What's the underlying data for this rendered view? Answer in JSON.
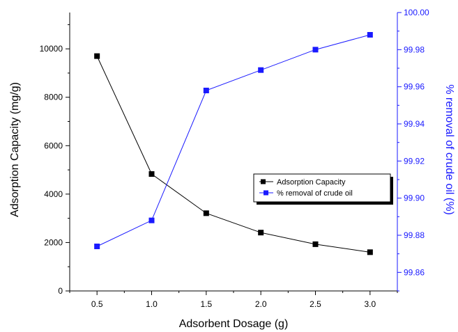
{
  "chart_data": {
    "type": "line",
    "title": "",
    "xlabel": "Adsorbent Dosage (g)",
    "ylabel_left": "Adsorption Capacity (mg/g)",
    "ylabel_right": "% removal of crude oil (%)",
    "x": [
      0.5,
      1.0,
      1.5,
      2.0,
      2.5,
      3.0
    ],
    "x_ticks": [
      "0.5",
      "1.0",
      "1.5",
      "2.0",
      "2.5",
      "3.0"
    ],
    "xlim": [
      0.25,
      3.25
    ],
    "ylim_left": [
      0,
      11500
    ],
    "y_left_ticks": [
      "0",
      "2000",
      "4000",
      "6000",
      "8000",
      "10000"
    ],
    "ylim_right": [
      99.85,
      100.0
    ],
    "y_right_ticks": [
      "99.86",
      "99.88",
      "99.90",
      "99.92",
      "99.94",
      "99.96",
      "99.98",
      "100.00"
    ],
    "series": [
      {
        "name": "Adsorption Capacity",
        "axis": "left",
        "color": "#000000",
        "marker": "square",
        "values": [
          9700,
          4830,
          3210,
          2410,
          1930,
          1600
        ]
      },
      {
        "name": "% removal of crude oil",
        "axis": "right",
        "color": "#1a1aff",
        "marker": "square",
        "values": [
          99.874,
          99.888,
          99.958,
          99.969,
          99.98,
          99.988
        ]
      }
    ],
    "legend_position": "center-right",
    "grid": false
  }
}
